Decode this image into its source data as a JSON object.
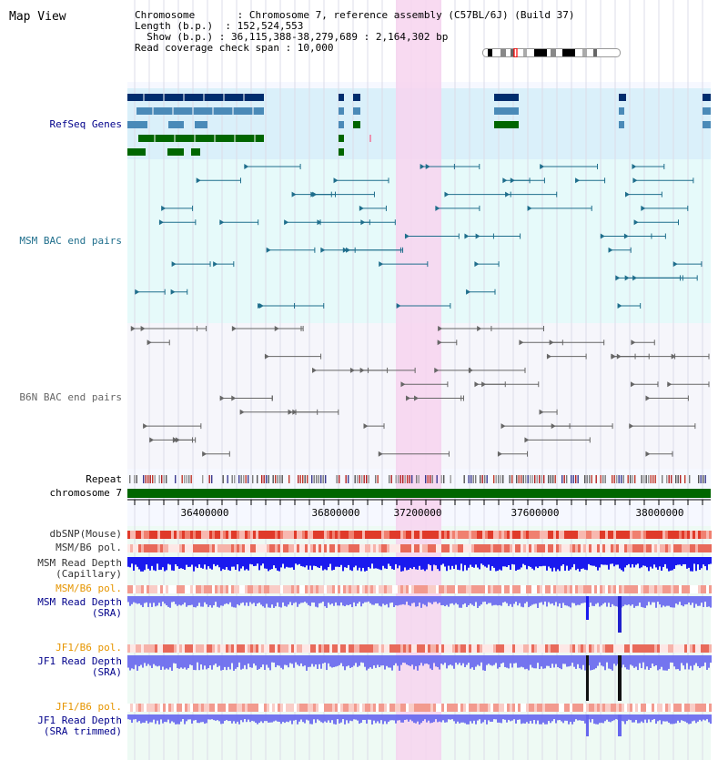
{
  "page": {
    "title": "Map View"
  },
  "info": {
    "line1": "Chromosome       : Chromosome 7, reference assembly (C57BL/6J) (Build 37)",
    "line2": "Length (b.p.)  : 152,524,553",
    "line3": "  Show (b.p.) : 36,115,388-38,279,689 : 2,164,302 bp",
    "line4": "Read coverage check span : 10,000"
  },
  "tracks": {
    "refseq": "RefSeq Genes",
    "msm_bac": "MSM BAC end pairs",
    "b6n_bac": "B6N BAC end pairs",
    "repeat": "Repeat",
    "chrom": "chromosome 7",
    "dbsnp": "dbSNP(Mouse)",
    "msm_b6_pol": "MSM/B6 pol.",
    "msm_depth_cap_1": "MSM Read Depth",
    "msm_depth_cap_2": "(Capillary)",
    "msm_b6_pol2": "MSM/B6 pol.",
    "msm_depth_sra_1": "MSM Read Depth",
    "msm_depth_sra_2": "(SRA)",
    "jf1_b6_pol": "JF1/B6 pol.",
    "jf1_depth_sra_1": "JF1 Read Depth",
    "jf1_depth_sra_2": "(SRA)",
    "jf1_b6_pol2": "JF1/B6 pol.",
    "jf1_depth_trim_1": "JF1 Read Depth",
    "jf1_depth_trim_2": "(SRA trimmed)"
  },
  "axis": {
    "ticks": [
      "36400000",
      "36800000",
      "37200000",
      "37600000",
      "38000000"
    ]
  },
  "colors": {
    "navy": "#002d6e",
    "steel": "#4a8ab8",
    "gene_green": "#006600",
    "msm_blue": "#1f6e8c",
    "gray": "#666666",
    "highlight": "#f7d4ee",
    "label_blue": "#00008b",
    "label_orange": "#e69500",
    "depth_blue": "#1a1aee",
    "depth_light": "#6666ee"
  }
}
